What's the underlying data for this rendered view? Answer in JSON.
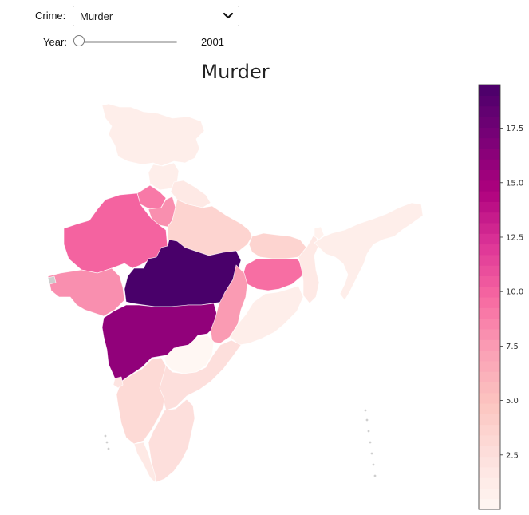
{
  "controls": {
    "crime_label": "Crime:",
    "crime_selected": "Murder",
    "year_label": "Year:",
    "year_value": "2001",
    "year_slider_position": 0.0
  },
  "map": {
    "title": "Murder",
    "colormap": "RdPu",
    "color_scale": {
      "min": 0,
      "max": 19.5
    },
    "no_data_color": "#cfcfcf",
    "regions": [
      {
        "name": "Jammu and Kashmir",
        "value": 1.0
      },
      {
        "name": "Himachal Pradesh",
        "value": 1.0
      },
      {
        "name": "Punjab",
        "value": 9.0
      },
      {
        "name": "Uttarakhand",
        "value": 1.5
      },
      {
        "name": "Haryana",
        "value": 8.0
      },
      {
        "name": "Rajasthan",
        "value": 10.0
      },
      {
        "name": "Uttar Pradesh",
        "value": 3.5
      },
      {
        "name": "Gujarat",
        "value": 8.0
      },
      {
        "name": "Madhya Pradesh",
        "value": 19.5
      },
      {
        "name": "Maharashtra",
        "value": 16.0
      },
      {
        "name": "Bihar",
        "value": 3.5
      },
      {
        "name": "Jharkhand",
        "value": 9.5
      },
      {
        "name": "West Bengal",
        "value": 1.5
      },
      {
        "name": "Chhattisgarh",
        "value": 7.5
      },
      {
        "name": "Odisha",
        "value": 1.0
      },
      {
        "name": "Telangana",
        "value": 0
      },
      {
        "name": "Andhra Pradesh",
        "value": 2.5
      },
      {
        "name": "Karnataka",
        "value": 3.0
      },
      {
        "name": "Goa",
        "value": 2.0
      },
      {
        "name": "Kerala",
        "value": 1.5
      },
      {
        "name": "Tamil Nadu",
        "value": 2.5
      },
      {
        "name": "Northeast",
        "value": 1.0
      },
      {
        "name": "Sikkim",
        "value": 0.5
      }
    ]
  },
  "colorbar": {
    "ticks": [
      2.5,
      5.0,
      7.5,
      10.0,
      12.5,
      15.0,
      17.5
    ]
  }
}
